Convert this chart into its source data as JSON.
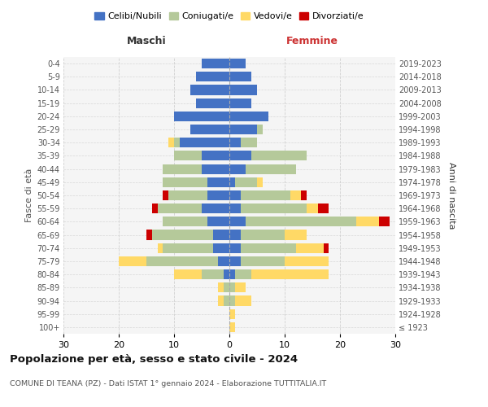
{
  "age_groups": [
    "100+",
    "95-99",
    "90-94",
    "85-89",
    "80-84",
    "75-79",
    "70-74",
    "65-69",
    "60-64",
    "55-59",
    "50-54",
    "45-49",
    "40-44",
    "35-39",
    "30-34",
    "25-29",
    "20-24",
    "15-19",
    "10-14",
    "5-9",
    "0-4"
  ],
  "birth_years": [
    "≤ 1923",
    "1924-1928",
    "1929-1933",
    "1934-1938",
    "1939-1943",
    "1944-1948",
    "1949-1953",
    "1954-1958",
    "1959-1963",
    "1964-1968",
    "1969-1973",
    "1974-1978",
    "1979-1983",
    "1984-1988",
    "1989-1993",
    "1994-1998",
    "1999-2003",
    "2004-2008",
    "2009-2013",
    "2014-2018",
    "2019-2023"
  ],
  "maschi": {
    "celibi": [
      0,
      0,
      0,
      0,
      1,
      2,
      3,
      3,
      4,
      5,
      4,
      4,
      5,
      5,
      9,
      7,
      10,
      6,
      7,
      6,
      5
    ],
    "coniugati": [
      0,
      0,
      1,
      1,
      4,
      13,
      9,
      11,
      8,
      8,
      7,
      8,
      7,
      5,
      1,
      0,
      0,
      0,
      0,
      0,
      0
    ],
    "vedovi": [
      0,
      0,
      1,
      1,
      5,
      5,
      1,
      0,
      0,
      0,
      0,
      0,
      0,
      0,
      1,
      0,
      0,
      0,
      0,
      0,
      0
    ],
    "divorziati": [
      0,
      0,
      0,
      0,
      0,
      0,
      0,
      1,
      0,
      1,
      1,
      0,
      0,
      0,
      0,
      0,
      0,
      0,
      0,
      0,
      0
    ]
  },
  "femmine": {
    "nubili": [
      0,
      0,
      0,
      0,
      1,
      2,
      2,
      2,
      3,
      2,
      2,
      1,
      3,
      4,
      2,
      5,
      7,
      4,
      5,
      4,
      3
    ],
    "coniugate": [
      0,
      0,
      1,
      1,
      3,
      8,
      10,
      8,
      20,
      12,
      9,
      4,
      9,
      10,
      3,
      1,
      0,
      0,
      0,
      0,
      0
    ],
    "vedove": [
      1,
      1,
      3,
      2,
      14,
      8,
      5,
      4,
      4,
      2,
      2,
      1,
      0,
      0,
      0,
      0,
      0,
      0,
      0,
      0,
      0
    ],
    "divorziate": [
      0,
      0,
      0,
      0,
      0,
      0,
      1,
      0,
      2,
      2,
      1,
      0,
      0,
      0,
      0,
      0,
      0,
      0,
      0,
      0,
      0
    ]
  },
  "colors": {
    "celibi_nubili": "#4472c4",
    "coniugati": "#b5c99a",
    "vedovi": "#ffd966",
    "divorziati": "#cc0000"
  },
  "title": "Popolazione per età, sesso e stato civile - 2024",
  "subtitle": "COMUNE DI TEANA (PZ) - Dati ISTAT 1° gennaio 2024 - Elaborazione TUTTITALIA.IT",
  "xlabel_left": "Maschi",
  "xlabel_right": "Femmine",
  "ylabel_left": "Fasce di età",
  "ylabel_right": "Anni di nascita",
  "xlim": 30,
  "legend_labels": [
    "Celibi/Nubili",
    "Coniugati/e",
    "Vedovi/e",
    "Divorziati/e"
  ],
  "background_color": "#ffffff",
  "plot_bg": "#f5f5f5",
  "grid_color": "#cccccc"
}
